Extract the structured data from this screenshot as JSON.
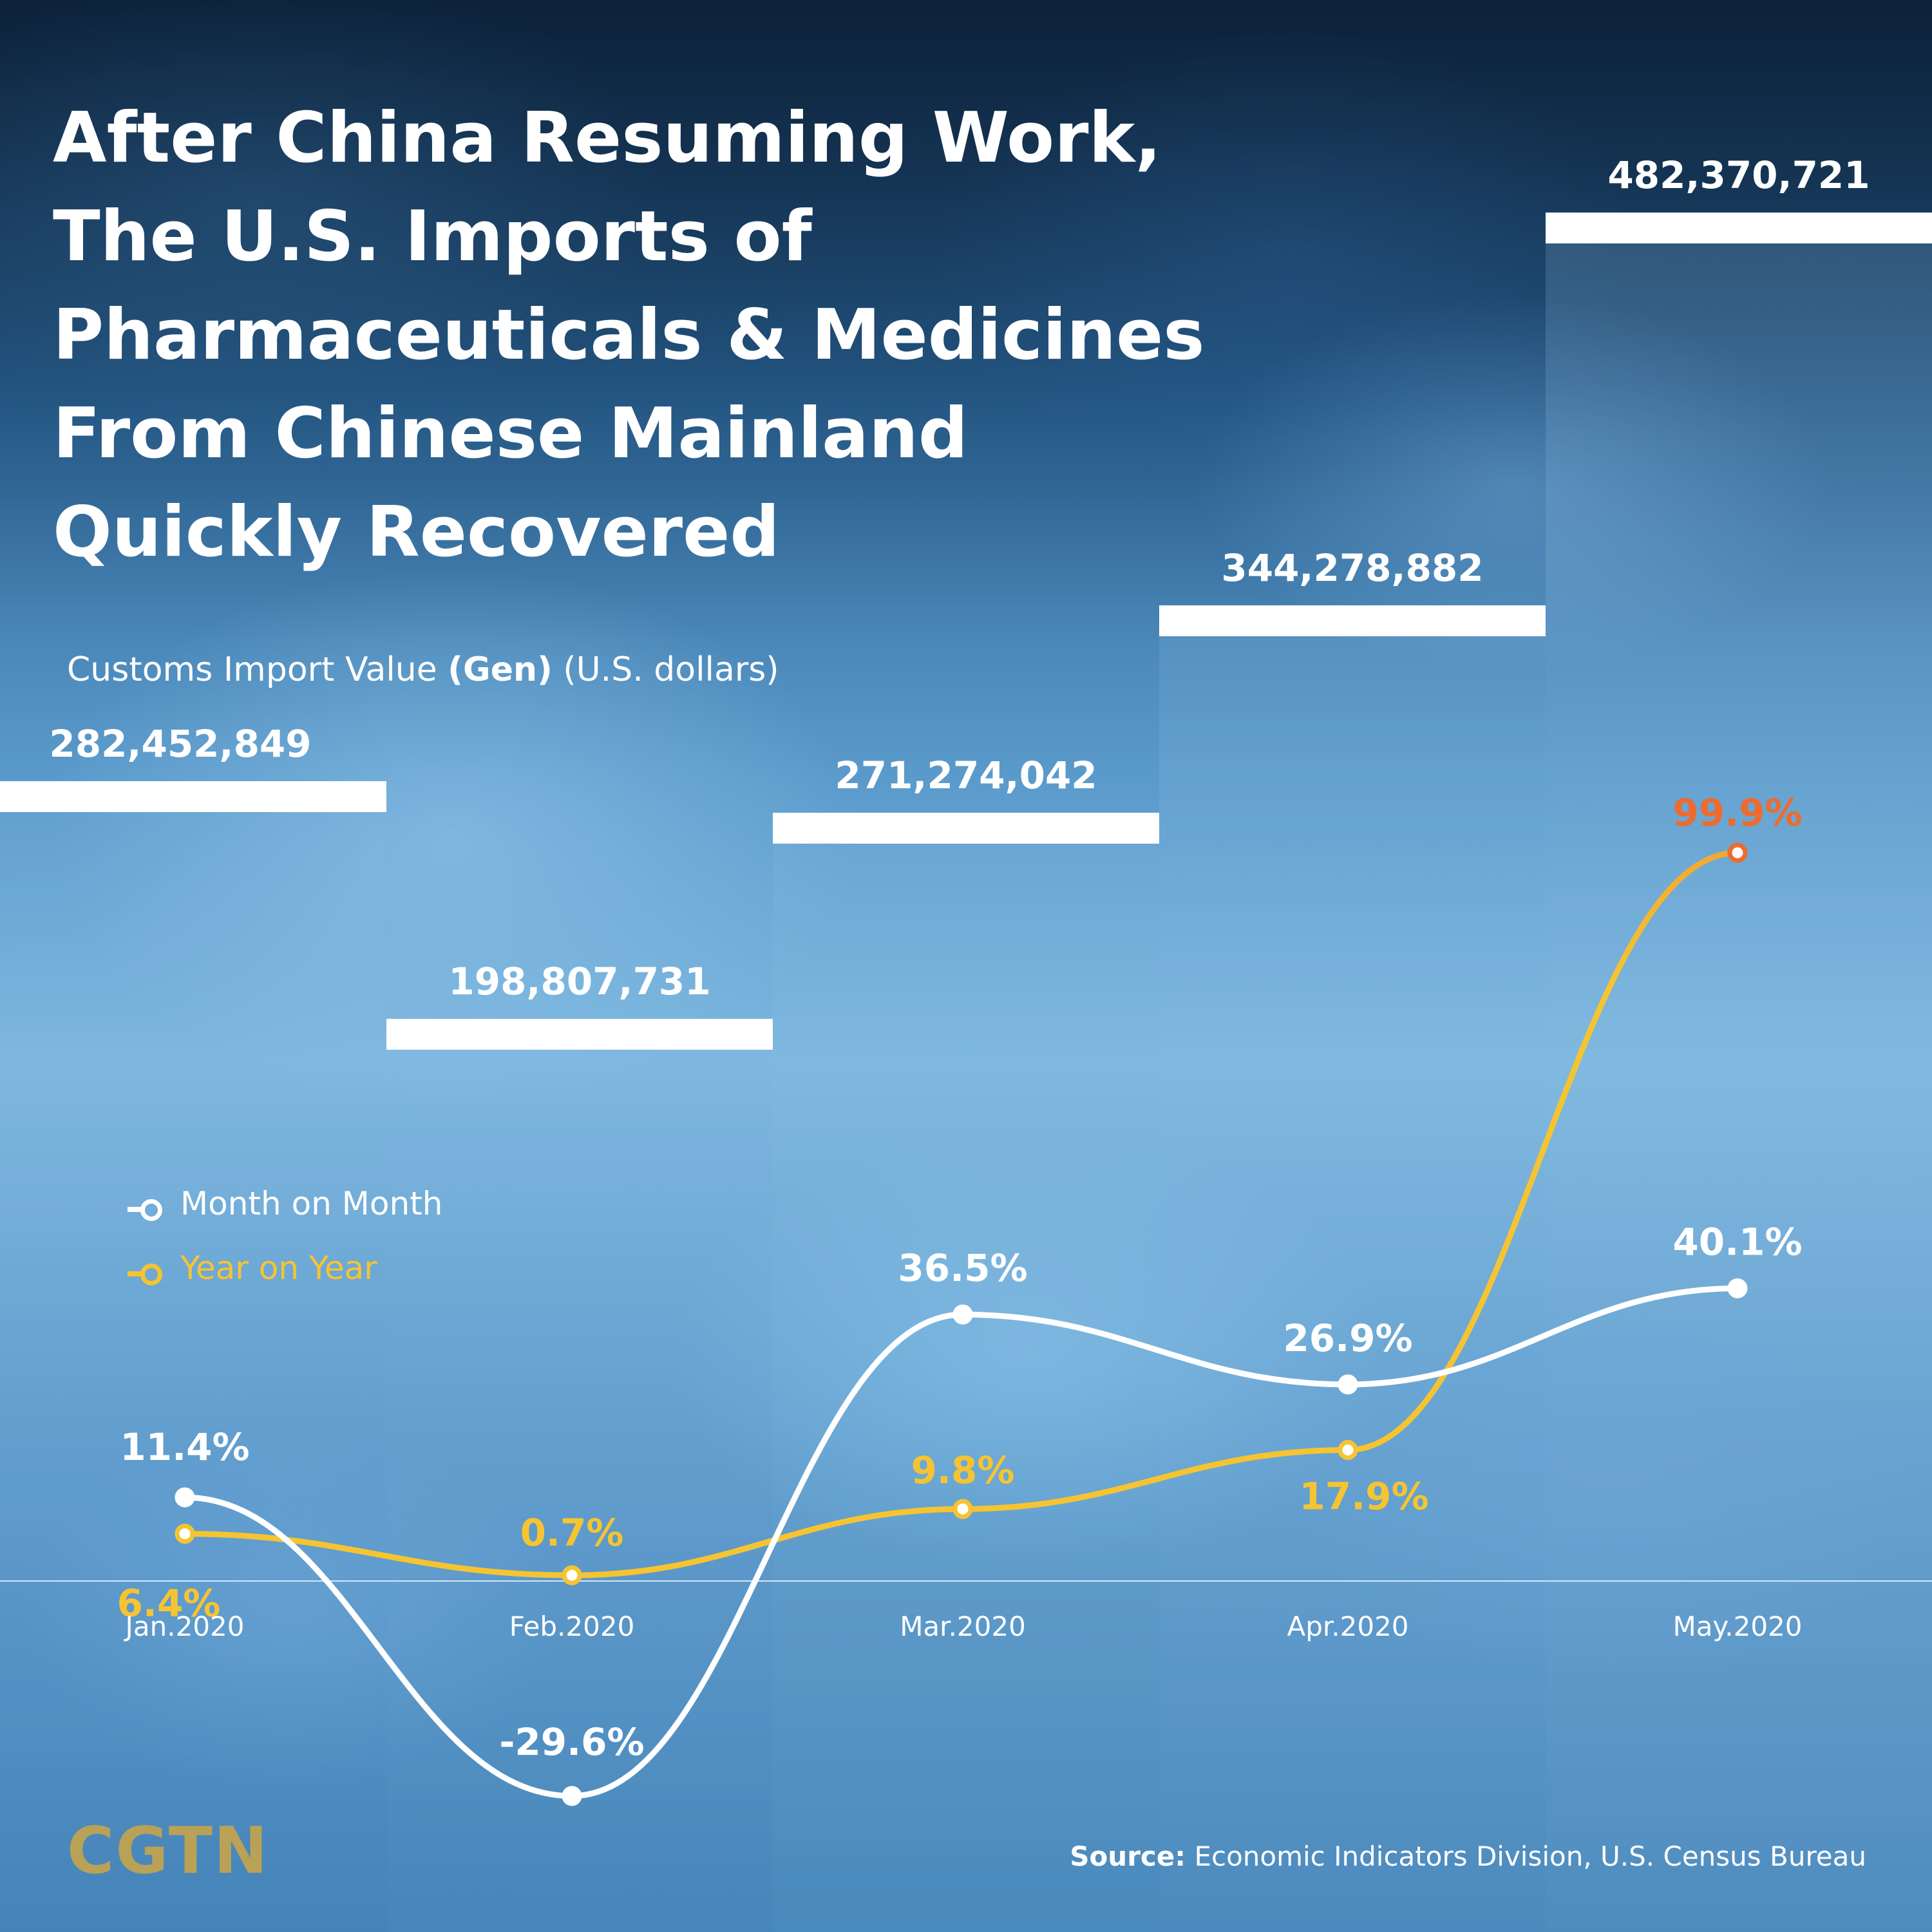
{
  "title": "After China Resuming Work,\nThe U.S. Imports of\nPharmaceuticals & Medicines\nFrom Chinese Mainland\nQuickly Recovered",
  "subtitle": {
    "main": "Customs Import Value",
    "gen": "(Gen)",
    "unit": "(U.S. dollars)"
  },
  "legend": {
    "mom": "Month on Month",
    "yoy": "Year on Year"
  },
  "source": {
    "label": "Source:",
    "text": "Economic Indicators Division, U.S. Census Bureau"
  },
  "logo": "CGTN",
  "colors": {
    "mom_line": "#ffffff",
    "yoy_line": "#f6c431",
    "yoy_peak": "#ee6b2d",
    "step_top": "#ffffff",
    "logo": "#b9a255"
  },
  "chart_data": [
    {
      "type": "bar",
      "categories": [
        "Jan.2020",
        "Feb.2020",
        "Mar.2020",
        "Apr.2020",
        "May.2020"
      ],
      "values": [
        282452849,
        198807731,
        271274042,
        344278882,
        482370721
      ],
      "value_labels": [
        "282,452,849",
        "198,807,731",
        "271,274,042",
        "344,278,882",
        "482,370,721"
      ],
      "ylabel": "Customs Import Value (Gen) (U.S. dollars)"
    },
    {
      "type": "line",
      "categories": [
        "Jan.2020",
        "Feb.2020",
        "Mar.2020",
        "Apr.2020",
        "May.2020"
      ],
      "series": [
        {
          "name": "Month on Month",
          "values": [
            11.4,
            -29.6,
            36.5,
            26.9,
            40.1
          ],
          "labels": [
            "11.4%",
            "-29.6%",
            "36.5%",
            "26.9%",
            "40.1%"
          ]
        },
        {
          "name": "Year on Year",
          "values": [
            6.4,
            0.7,
            9.8,
            17.9,
            99.9
          ],
          "labels": [
            "6.4%",
            "0.7%",
            "9.8%",
            "17.9%",
            "99.9%"
          ]
        }
      ]
    }
  ]
}
